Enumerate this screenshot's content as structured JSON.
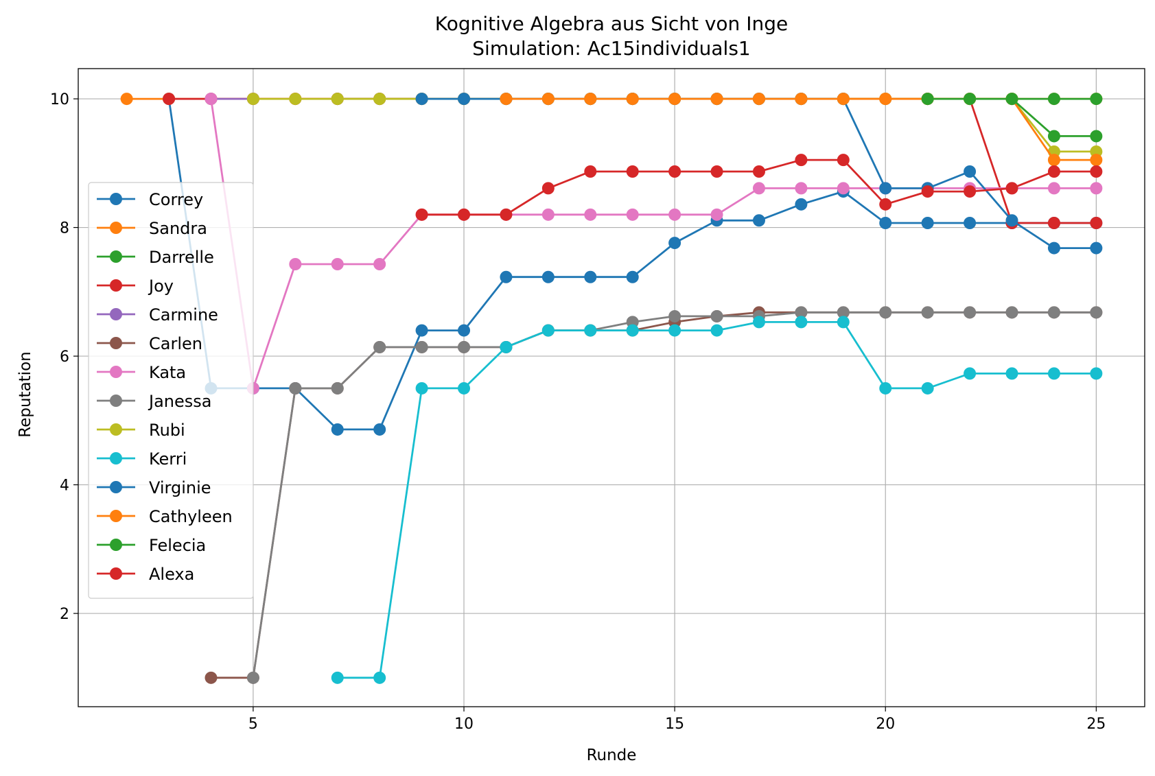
{
  "chart_data": {
    "type": "line",
    "title": "Kognitive Algebra aus Sicht von Inge",
    "subtitle": "Simulation: Ac15individuals1",
    "xlabel": "Runde",
    "ylabel": "Reputation",
    "xlim": [
      0.85,
      26.15
    ],
    "ylim": [
      0.55,
      10.47
    ],
    "xticks": [
      5,
      10,
      15,
      20,
      25
    ],
    "yticks": [
      2,
      4,
      6,
      8,
      10
    ],
    "grid": true,
    "legend_position": "center-left",
    "series": [
      {
        "name": "Correy",
        "color": "#1f77b4",
        "x": [
          3,
          4,
          5,
          6,
          7,
          8,
          9,
          10,
          11,
          12,
          13,
          14,
          15,
          16,
          17,
          18,
          19,
          20,
          21,
          22,
          23,
          24,
          25
        ],
        "values": [
          10,
          5.5,
          5.5,
          5.5,
          4.86,
          4.86,
          6.4,
          6.4,
          7.23,
          7.23,
          7.23,
          7.23,
          7.76,
          8.11,
          8.11,
          8.36,
          8.56,
          8.07,
          8.07,
          8.07,
          8.07,
          8.07,
          8.07
        ]
      },
      {
        "name": "Sandra",
        "color": "#ff7f0e",
        "x": [
          2,
          3,
          4,
          5,
          6,
          7,
          8,
          9,
          10,
          11,
          12,
          13,
          14,
          15,
          16,
          17,
          18,
          19,
          20,
          21,
          22,
          23,
          24,
          25
        ],
        "values": [
          10,
          10,
          10,
          10,
          10,
          10,
          10,
          10,
          10,
          10,
          10,
          10,
          10,
          10,
          10,
          10,
          10,
          10,
          10,
          10,
          10,
          10,
          10,
          10
        ]
      },
      {
        "name": "Darrelle",
        "color": "#2ca02c",
        "x": [
          7,
          8,
          9,
          10,
          11,
          12,
          13,
          14,
          15,
          16,
          17,
          18,
          19,
          20,
          21,
          22,
          23,
          24,
          25
        ],
        "values": [
          10,
          10,
          10,
          10,
          10,
          10,
          10,
          10,
          10,
          10,
          10,
          10,
          10,
          10,
          10,
          10,
          10,
          10,
          10
        ]
      },
      {
        "name": "Joy",
        "color": "#d62728",
        "x": [
          3,
          4,
          5,
          6,
          7,
          8,
          9,
          10,
          11,
          12,
          13,
          14,
          15,
          16,
          17,
          18,
          19,
          20,
          21,
          22,
          23,
          24,
          25
        ],
        "values": [
          10,
          10,
          10,
          10,
          10,
          10,
          10,
          10,
          10,
          10,
          10,
          10,
          10,
          10,
          10,
          10,
          10,
          10,
          10,
          10,
          8.07,
          8.07,
          8.07
        ]
      },
      {
        "name": "Carmine",
        "color": "#9467bd",
        "x": [
          4,
          5
        ],
        "values": [
          10,
          10
        ]
      },
      {
        "name": "Carlen",
        "color": "#8c564b",
        "x": [
          4,
          5,
          6,
          7,
          8,
          9,
          10,
          11,
          12,
          13,
          14,
          15,
          16,
          17,
          18,
          19,
          20,
          21,
          22,
          23,
          24,
          25
        ],
        "values": [
          1,
          1,
          5.5,
          5.5,
          6.14,
          6.14,
          6.14,
          6.14,
          6.4,
          6.4,
          6.4,
          6.53,
          6.62,
          6.68,
          6.68,
          6.68,
          6.68,
          6.68,
          6.68,
          6.68,
          6.68,
          6.68
        ]
      },
      {
        "name": "Kata",
        "color": "#e377c2",
        "x": [
          4,
          5,
          6,
          7,
          8,
          9,
          10,
          11,
          12,
          13,
          14,
          15,
          16,
          17,
          18,
          19,
          20,
          21,
          22,
          23,
          24,
          25
        ],
        "values": [
          10,
          5.5,
          7.43,
          7.43,
          7.43,
          8.2,
          8.2,
          8.2,
          8.2,
          8.2,
          8.2,
          8.2,
          8.2,
          8.61,
          8.61,
          8.61,
          8.61,
          8.61,
          8.61,
          8.61,
          8.61,
          8.61
        ]
      },
      {
        "name": "Janessa",
        "color": "#7f7f7f",
        "x": [
          5,
          6,
          7,
          8,
          9,
          10,
          11,
          12,
          13,
          14,
          15,
          16,
          17,
          18,
          19,
          20,
          21,
          22,
          23,
          24,
          25
        ],
        "values": [
          1,
          5.5,
          5.5,
          6.14,
          6.14,
          6.14,
          6.14,
          6.4,
          6.4,
          6.53,
          6.62,
          6.62,
          6.62,
          6.68,
          6.68,
          6.68,
          6.68,
          6.68,
          6.68,
          6.68,
          6.68
        ]
      },
      {
        "name": "Rubi",
        "color": "#bcbd22",
        "x": [
          5,
          6,
          7,
          8,
          9,
          10,
          11,
          12,
          13,
          14,
          15,
          16,
          17,
          18,
          19,
          20,
          21,
          22,
          23,
          24,
          25
        ],
        "values": [
          10,
          10,
          10,
          10,
          10,
          10,
          10,
          10,
          10,
          10,
          10,
          10,
          10,
          10,
          10,
          10,
          10,
          10,
          10,
          9.18,
          9.18
        ]
      },
      {
        "name": "Kerri",
        "color": "#17becf",
        "x": [
          7,
          8,
          9,
          10,
          11,
          12,
          13,
          14,
          15,
          16,
          17,
          18,
          19,
          20,
          21,
          22,
          23,
          24,
          25
        ],
        "values": [
          1,
          1,
          5.5,
          5.5,
          6.14,
          6.4,
          6.4,
          6.4,
          6.4,
          6.4,
          6.53,
          6.53,
          6.53,
          5.5,
          5.5,
          5.73,
          5.73,
          5.73,
          5.73
        ]
      },
      {
        "name": "Virginie",
        "color": "#1f77b4",
        "x": [
          9,
          10,
          11,
          12,
          13,
          14,
          15,
          16,
          17,
          18,
          19,
          20,
          21,
          22,
          23,
          24,
          25
        ],
        "values": [
          10,
          10,
          10,
          10,
          10,
          10,
          10,
          10,
          10,
          10,
          10,
          8.61,
          8.61,
          8.87,
          8.11,
          7.68,
          7.68
        ]
      },
      {
        "name": "Cathyleen",
        "color": "#ff7f0e",
        "x": [
          11,
          12,
          13,
          14,
          15,
          16,
          17,
          18,
          19,
          20,
          21,
          22,
          23,
          24,
          25
        ],
        "values": [
          10,
          10,
          10,
          10,
          10,
          10,
          10,
          10,
          10,
          10,
          10,
          10,
          10,
          9.05,
          9.05
        ]
      },
      {
        "name": "Felecia",
        "color": "#2ca02c",
        "x": [
          21,
          22,
          23,
          24,
          25
        ],
        "values": [
          10,
          10,
          10,
          9.42,
          9.42
        ]
      },
      {
        "name": "Alexa",
        "color": "#d62728",
        "x": [
          9,
          10,
          11,
          12,
          13,
          14,
          15,
          16,
          17,
          18,
          19,
          20,
          21,
          22,
          23,
          24,
          25
        ],
        "values": [
          8.2,
          8.2,
          8.2,
          8.61,
          8.87,
          8.87,
          8.87,
          8.87,
          8.87,
          9.05,
          9.05,
          8.36,
          8.56,
          8.56,
          8.61,
          8.87,
          8.87
        ]
      }
    ]
  }
}
